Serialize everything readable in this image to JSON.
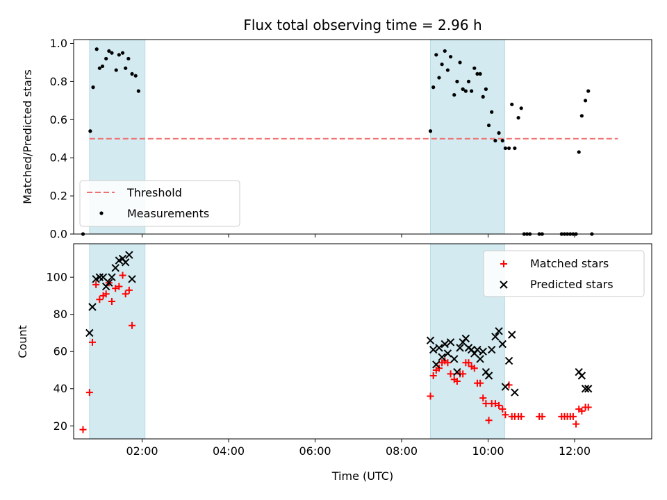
{
  "chart_data": [
    {
      "type": "scatter",
      "title": "Flux total observing time = 2.96 h",
      "ylabel": "Matched/Predicted stars",
      "xlabel": "",
      "xlim": [
        "00:25",
        "13:47"
      ],
      "ylim": [
        0,
        1.02
      ],
      "yticks": [
        0.0,
        0.2,
        0.4,
        0.6,
        0.8,
        1.0
      ],
      "ytick_labels": [
        "0.0",
        "0.2",
        "0.4",
        "0.6",
        "0.8",
        "1.0"
      ],
      "xticks": [
        "02:00",
        "04:00",
        "06:00",
        "08:00",
        "10:00",
        "12:00"
      ],
      "shaded_spans": [
        [
          "00:47",
          "02:04"
        ],
        [
          "08:40",
          "10:23"
        ]
      ],
      "span_color": "#d2eaf0",
      "legend_position": "lower-left",
      "threshold": {
        "name": "Threshold",
        "y": 0.5,
        "x_range": [
          "00:47",
          "13:00"
        ],
        "color": "#f07070"
      },
      "series": [
        {
          "name": "Measurements",
          "color": "#000000",
          "marker": "dot",
          "points": [
            [
              "00:38",
              0.0
            ],
            [
              "00:48",
              0.54
            ],
            [
              "00:52",
              0.77
            ],
            [
              "00:57",
              0.97
            ],
            [
              "01:01",
              0.87
            ],
            [
              "01:05",
              0.88
            ],
            [
              "01:10",
              0.92
            ],
            [
              "01:14",
              0.96
            ],
            [
              "01:18",
              0.95
            ],
            [
              "01:24",
              0.86
            ],
            [
              "01:28",
              0.94
            ],
            [
              "01:33",
              0.95
            ],
            [
              "01:37",
              0.87
            ],
            [
              "01:41",
              0.92
            ],
            [
              "01:46",
              0.84
            ],
            [
              "01:51",
              0.83
            ],
            [
              "01:55",
              0.75
            ],
            [
              "08:40",
              0.54
            ],
            [
              "08:44",
              0.77
            ],
            [
              "08:48",
              0.94
            ],
            [
              "08:52",
              0.82
            ],
            [
              "08:56",
              0.89
            ],
            [
              "09:00",
              0.96
            ],
            [
              "09:04",
              0.86
            ],
            [
              "09:08",
              0.93
            ],
            [
              "09:13",
              0.73
            ],
            [
              "09:17",
              0.8
            ],
            [
              "09:21",
              0.9
            ],
            [
              "09:25",
              0.76
            ],
            [
              "09:29",
              0.75
            ],
            [
              "09:33",
              0.8
            ],
            [
              "09:37",
              0.75
            ],
            [
              "09:41",
              0.87
            ],
            [
              "09:45",
              0.84
            ],
            [
              "09:49",
              0.84
            ],
            [
              "09:53",
              0.72
            ],
            [
              "09:57",
              0.76
            ],
            [
              "10:01",
              0.57
            ],
            [
              "10:05",
              0.64
            ],
            [
              "10:10",
              0.49
            ],
            [
              "10:15",
              0.53
            ],
            [
              "10:20",
              0.49
            ],
            [
              "10:24",
              0.45
            ],
            [
              "10:29",
              0.45
            ],
            [
              "10:33",
              0.68
            ],
            [
              "10:37",
              0.45
            ],
            [
              "10:42",
              0.61
            ],
            [
              "10:46",
              0.66
            ],
            [
              "10:50",
              0.0
            ],
            [
              "10:54",
              0.0
            ],
            [
              "10:58",
              0.0
            ],
            [
              "11:11",
              0.0
            ],
            [
              "11:15",
              0.0
            ],
            [
              "11:42",
              0.0
            ],
            [
              "11:46",
              0.0
            ],
            [
              "11:50",
              0.0
            ],
            [
              "11:54",
              0.0
            ],
            [
              "11:58",
              0.0
            ],
            [
              "12:02",
              0.0
            ],
            [
              "12:06",
              0.43
            ],
            [
              "12:10",
              0.62
            ],
            [
              "12:15",
              0.7
            ],
            [
              "12:19",
              0.75
            ],
            [
              "12:24",
              0.0
            ]
          ]
        }
      ]
    },
    {
      "type": "scatter",
      "title": "",
      "xlabel": "Time (UTC)",
      "ylabel": "Count",
      "xlim": [
        "00:25",
        "13:47"
      ],
      "ylim": [
        13,
        118
      ],
      "yticks": [
        20,
        40,
        60,
        80,
        100
      ],
      "ytick_labels": [
        "20",
        "40",
        "60",
        "80",
        "100"
      ],
      "xticks": [
        "02:00",
        "04:00",
        "06:00",
        "08:00",
        "10:00",
        "12:00"
      ],
      "shaded_spans": [
        [
          "00:47",
          "02:04"
        ],
        [
          "08:40",
          "10:23"
        ]
      ],
      "span_color": "#d2eaf0",
      "legend_position": "upper-right",
      "series": [
        {
          "name": "Matched stars",
          "color": "#ff0000",
          "marker": "plus",
          "points": [
            [
              "00:38",
              18
            ],
            [
              "00:47",
              38
            ],
            [
              "00:51",
              65
            ],
            [
              "00:56",
              96
            ],
            [
              "01:01",
              88
            ],
            [
              "01:06",
              90
            ],
            [
              "01:10",
              91
            ],
            [
              "01:14",
              97
            ],
            [
              "01:18",
              87
            ],
            [
              "01:23",
              94
            ],
            [
              "01:28",
              95
            ],
            [
              "01:33",
              101
            ],
            [
              "01:37",
              91
            ],
            [
              "01:42",
              93
            ],
            [
              "01:46",
              74
            ],
            [
              "08:40",
              36
            ],
            [
              "08:44",
              47
            ],
            [
              "08:48",
              50
            ],
            [
              "08:52",
              51
            ],
            [
              "08:56",
              54
            ],
            [
              "09:00",
              55
            ],
            [
              "09:04",
              54
            ],
            [
              "09:08",
              48
            ],
            [
              "09:13",
              45
            ],
            [
              "09:17",
              44
            ],
            [
              "09:21",
              48
            ],
            [
              "09:25",
              48
            ],
            [
              "09:29",
              54
            ],
            [
              "09:33",
              54
            ],
            [
              "09:37",
              52
            ],
            [
              "09:41",
              51
            ],
            [
              "09:45",
              43
            ],
            [
              "09:49",
              43
            ],
            [
              "09:53",
              35
            ],
            [
              "09:57",
              32
            ],
            [
              "10:01",
              23
            ],
            [
              "10:05",
              32
            ],
            [
              "10:10",
              32
            ],
            [
              "10:15",
              31
            ],
            [
              "10:20",
              29
            ],
            [
              "10:24",
              26
            ],
            [
              "10:29",
              42
            ],
            [
              "10:33",
              25
            ],
            [
              "10:37",
              25
            ],
            [
              "10:42",
              25
            ],
            [
              "10:46",
              25
            ],
            [
              "11:11",
              25
            ],
            [
              "11:15",
              25
            ],
            [
              "11:42",
              25
            ],
            [
              "11:46",
              25
            ],
            [
              "11:50",
              25
            ],
            [
              "11:54",
              25
            ],
            [
              "11:58",
              25
            ],
            [
              "12:02",
              21
            ],
            [
              "12:06",
              29
            ],
            [
              "12:10",
              28
            ],
            [
              "12:15",
              30
            ],
            [
              "12:19",
              30
            ]
          ]
        },
        {
          "name": "Predicted stars",
          "color": "#000000",
          "marker": "x",
          "points": [
            [
              "00:47",
              70
            ],
            [
              "00:51",
              84
            ],
            [
              "00:56",
              99
            ],
            [
              "01:01",
              100
            ],
            [
              "01:06",
              100
            ],
            [
              "01:10",
              95
            ],
            [
              "01:14",
              97
            ],
            [
              "01:18",
              100
            ],
            [
              "01:23",
              105
            ],
            [
              "01:28",
              109
            ],
            [
              "01:33",
              110
            ],
            [
              "01:37",
              108
            ],
            [
              "01:42",
              112
            ],
            [
              "01:46",
              99
            ],
            [
              "08:40",
              66
            ],
            [
              "08:44",
              61
            ],
            [
              "08:48",
              53
            ],
            [
              "08:52",
              62
            ],
            [
              "08:56",
              57
            ],
            [
              "09:00",
              64
            ],
            [
              "09:04",
              59
            ],
            [
              "09:08",
              65
            ],
            [
              "09:13",
              56
            ],
            [
              "09:17",
              49
            ],
            [
              "09:21",
              62
            ],
            [
              "09:25",
              65
            ],
            [
              "09:29",
              67
            ],
            [
              "09:33",
              62
            ],
            [
              "09:37",
              61
            ],
            [
              "09:41",
              59
            ],
            [
              "09:45",
              61
            ],
            [
              "09:49",
              56
            ],
            [
              "09:53",
              60
            ],
            [
              "09:57",
              49
            ],
            [
              "10:01",
              47
            ],
            [
              "10:05",
              61
            ],
            [
              "10:10",
              68
            ],
            [
              "10:15",
              71
            ],
            [
              "10:20",
              64
            ],
            [
              "10:24",
              41
            ],
            [
              "10:29",
              55
            ],
            [
              "10:33",
              69
            ],
            [
              "10:37",
              38
            ],
            [
              "12:06",
              49
            ],
            [
              "12:10",
              47
            ],
            [
              "12:15",
              40
            ],
            [
              "12:19",
              40
            ]
          ]
        }
      ]
    }
  ]
}
